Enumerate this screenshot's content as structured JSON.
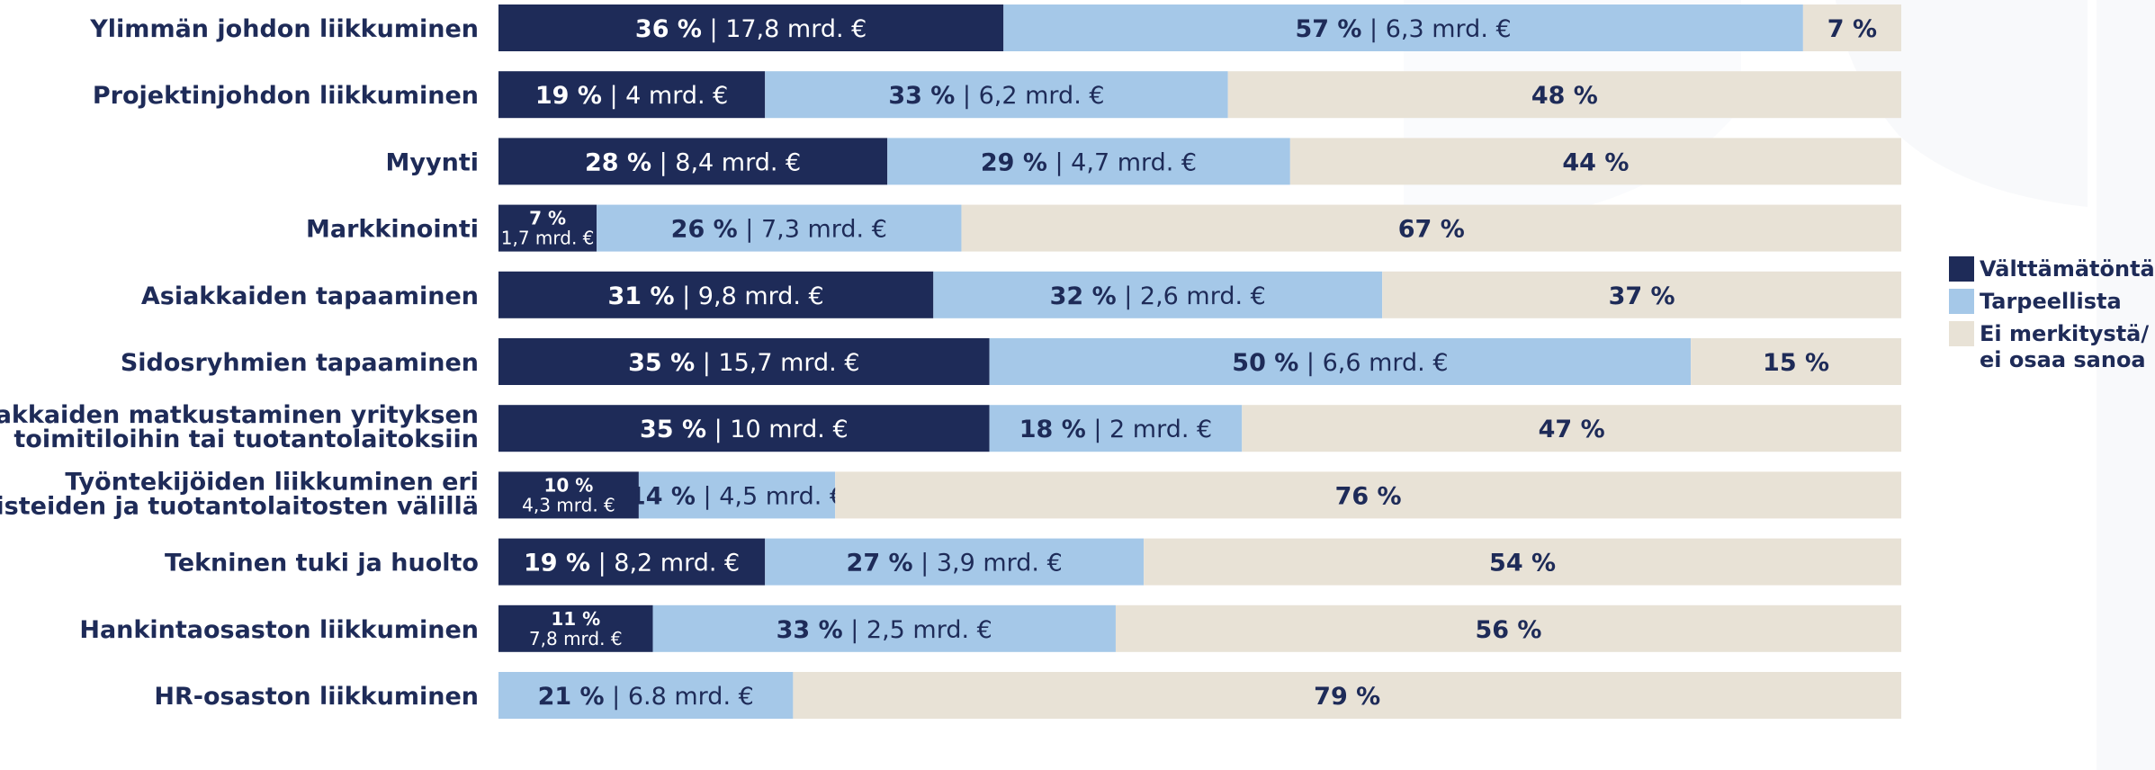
{
  "chart_data": {
    "type": "bar",
    "stacked": true,
    "orientation": "horizontal",
    "normalized": true,
    "categories": [
      "Ylimmän johdon liikkuminen",
      "Projektinjohdon liikkuminen",
      "Myynti",
      "Markkinointi",
      "Asiakkaiden tapaaminen",
      "Sidosryhmien tapaaminen",
      "Asiakkaiden matkustaminen yrityksen toimitiloihin tai tuotantolaitoksiin",
      "Työntekijöiden liikkuminen eri toimipisteiden ja tuotantolaitosten välillä",
      "Tekninen tuki ja huolto",
      "Hankintaosaston liikkuminen",
      "HR-osaston liikkuminen"
    ],
    "category_lines": [
      [
        "Ylimmän johdon liikkuminen"
      ],
      [
        "Projektinjohdon liikkuminen"
      ],
      [
        "Myynti"
      ],
      [
        "Markkinointi"
      ],
      [
        "Asiakkaiden tapaaminen"
      ],
      [
        "Sidosryhmien tapaaminen"
      ],
      [
        "Asiakkaiden matkustaminen yrityksen",
        "toimitiloihin tai tuotantolaitoksiin"
      ],
      [
        "Työntekijöiden liikkuminen eri",
        "toimipisteiden ja tuotantolaitosten välillä"
      ],
      [
        "Tekninen tuki ja huolto"
      ],
      [
        "Hankintaosaston liikkuminen"
      ],
      [
        "HR-osaston liikkuminen"
      ]
    ],
    "series": [
      {
        "name": "Välttämätöntä",
        "color": "#1e2b58",
        "text_color": "#ffffff",
        "values": [
          36,
          19,
          28,
          7,
          31,
          35,
          35,
          10,
          19,
          11,
          0
        ],
        "labels": [
          "36 %",
          "19 %",
          "28 %",
          "7 %",
          "31 %",
          "35 %",
          "35 %",
          "10 %",
          "19 %",
          "11 %",
          ""
        ],
        "amounts": [
          "17,8 mrd. €",
          "4 mrd. €",
          "8,4 mrd. €",
          "1,7 mrd. €",
          "9,8 mrd. €",
          "15,7 mrd. €",
          "10 mrd. €",
          "4,3 mrd. €",
          "8,2 mrd. €",
          "7,8 mrd. €",
          ""
        ]
      },
      {
        "name": "Tarpeellista",
        "color": "#a5c8e8",
        "text_color": "#1e2b58",
        "values": [
          57,
          33,
          29,
          26,
          32,
          50,
          18,
          14,
          27,
          33,
          21
        ],
        "labels": [
          "57 %",
          "33 %",
          "29 %",
          "26 %",
          "32 %",
          "50 %",
          "18 %",
          "14 %",
          "27 %",
          "33 %",
          "21 %"
        ],
        "amounts": [
          "6,3 mrd. €",
          "6,2 mrd. €",
          "4,7 mrd. €",
          "7,3 mrd. €",
          "2,6 mrd. €",
          "6,6 mrd. €",
          "2 mrd. €",
          "4,5 mrd. €",
          "3,9 mrd. €",
          "2,5 mrd. €",
          "6.8 mrd. €"
        ]
      },
      {
        "name": "Ei merkitystä/ ei osaa sanoa",
        "name_lines": [
          "Ei merkitystä/",
          "ei osaa sanoa"
        ],
        "color": "#e8e2d6",
        "text_color": "#1e2b58",
        "values": [
          7,
          48,
          44,
          67,
          37,
          15,
          47,
          76,
          54,
          56,
          79
        ],
        "labels": [
          "7 %",
          "48 %",
          "44 %",
          "67 %",
          "37 %",
          "15 %",
          "47 %",
          "76 %",
          "54 %",
          "56 %",
          "79 %"
        ],
        "amounts": [
          "",
          "",
          "",
          "",
          "",
          "",
          "",
          "",
          "",
          "",
          ""
        ]
      }
    ],
    "stacked_label_rows": [
      3,
      7,
      9
    ],
    "xlim": [
      0,
      100
    ],
    "legend_position": "right",
    "grid": false,
    "title": "",
    "xlabel": "",
    "ylabel": ""
  }
}
